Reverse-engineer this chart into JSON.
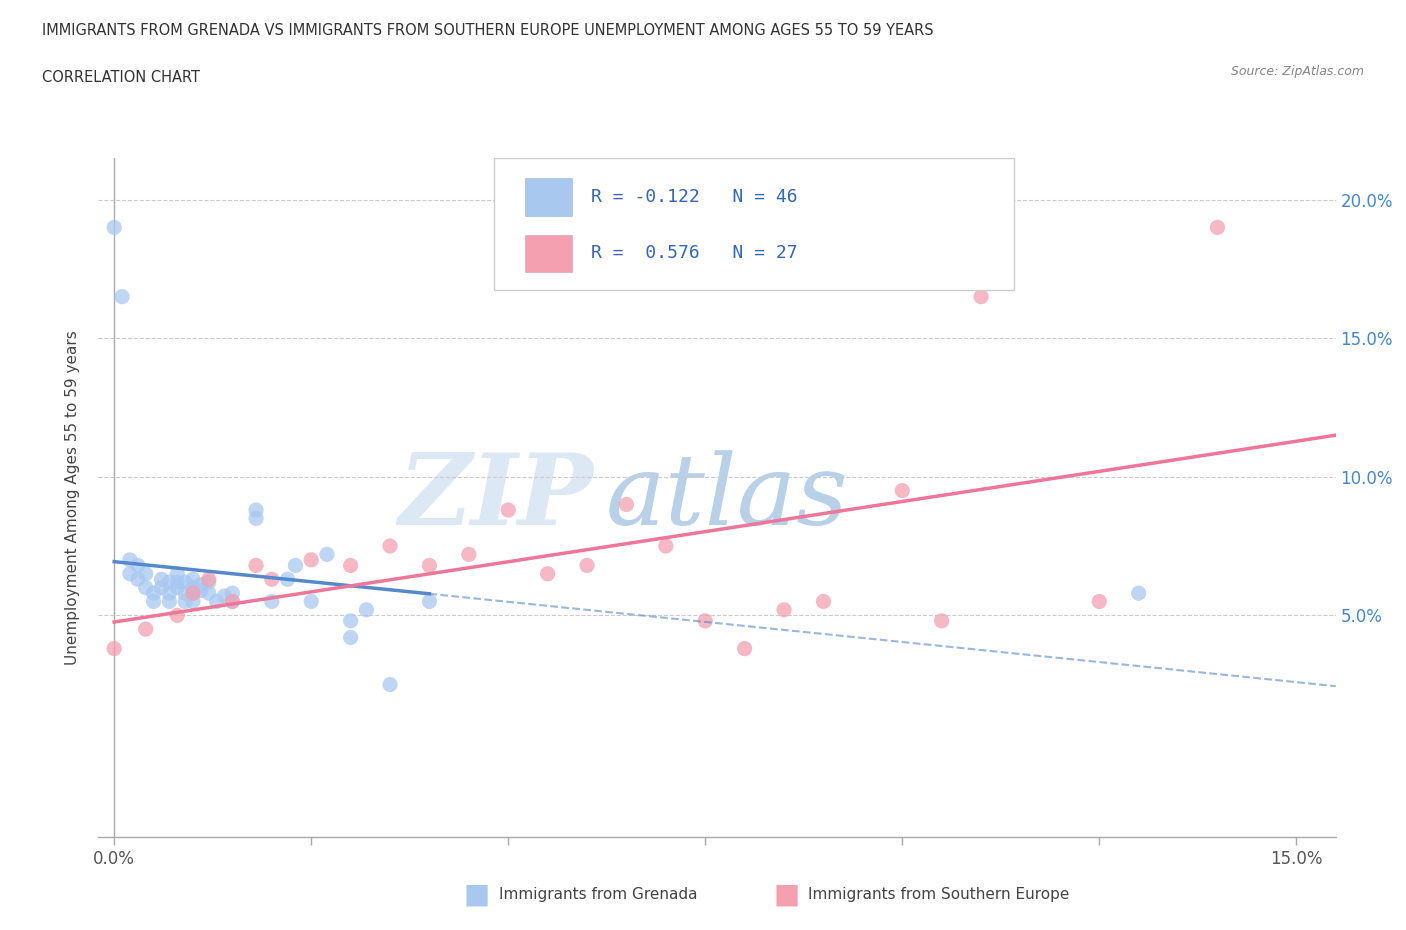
{
  "title_line1": "IMMIGRANTS FROM GRENADA VS IMMIGRANTS FROM SOUTHERN EUROPE UNEMPLOYMENT AMONG AGES 55 TO 59 YEARS",
  "title_line2": "CORRELATION CHART",
  "source": "Source: ZipAtlas.com",
  "ylabel": "Unemployment Among Ages 55 to 59 years",
  "xlim": [
    -0.002,
    0.155
  ],
  "ylim": [
    -0.03,
    0.215
  ],
  "ytick_vals": [
    0.05,
    0.1,
    0.15,
    0.2
  ],
  "ytick_labels": [
    "5.0%",
    "10.0%",
    "15.0%",
    "20.0%"
  ],
  "legend_label1": "Immigrants from Grenada",
  "legend_label2": "Immigrants from Southern Europe",
  "r1": "-0.122",
  "n1": "46",
  "r2": "0.576",
  "n2": "27",
  "color_grenada": "#a8c8f0",
  "color_europe": "#f4a0b0",
  "color_grenada_line": "#5588cc",
  "color_europe_line": "#ee7799",
  "watermark_zip": "ZIP",
  "watermark_atlas": "atlas",
  "grenada_x": [
    0.002,
    0.002,
    0.003,
    0.003,
    0.004,
    0.004,
    0.005,
    0.005,
    0.006,
    0.006,
    0.007,
    0.007,
    0.007,
    0.008,
    0.008,
    0.008,
    0.009,
    0.009,
    0.009,
    0.01,
    0.01,
    0.01,
    0.01,
    0.011,
    0.011,
    0.012,
    0.012,
    0.013,
    0.014,
    0.015,
    0.015,
    0.018,
    0.018,
    0.02,
    0.022,
    0.023,
    0.025,
    0.027,
    0.03,
    0.03,
    0.032,
    0.035,
    0.04,
    0.0,
    0.001,
    0.13
  ],
  "grenada_y": [
    0.065,
    0.07,
    0.063,
    0.068,
    0.06,
    0.065,
    0.055,
    0.058,
    0.06,
    0.063,
    0.055,
    0.058,
    0.062,
    0.06,
    0.062,
    0.065,
    0.055,
    0.058,
    0.062,
    0.055,
    0.058,
    0.06,
    0.063,
    0.059,
    0.061,
    0.058,
    0.062,
    0.055,
    0.057,
    0.055,
    0.058,
    0.085,
    0.088,
    0.055,
    0.063,
    0.068,
    0.055,
    0.072,
    0.042,
    0.048,
    0.052,
    0.025,
    0.055,
    0.19,
    0.165,
    0.058
  ],
  "europe_x": [
    0.0,
    0.004,
    0.008,
    0.01,
    0.012,
    0.015,
    0.018,
    0.02,
    0.025,
    0.03,
    0.035,
    0.04,
    0.045,
    0.05,
    0.055,
    0.06,
    0.065,
    0.07,
    0.075,
    0.08,
    0.085,
    0.09,
    0.1,
    0.105,
    0.11,
    0.125,
    0.14
  ],
  "europe_y": [
    0.038,
    0.045,
    0.05,
    0.058,
    0.063,
    0.055,
    0.068,
    0.063,
    0.07,
    0.068,
    0.075,
    0.068,
    0.072,
    0.088,
    0.065,
    0.068,
    0.09,
    0.075,
    0.048,
    0.038,
    0.052,
    0.055,
    0.095,
    0.048,
    0.165,
    0.055,
    0.19
  ]
}
